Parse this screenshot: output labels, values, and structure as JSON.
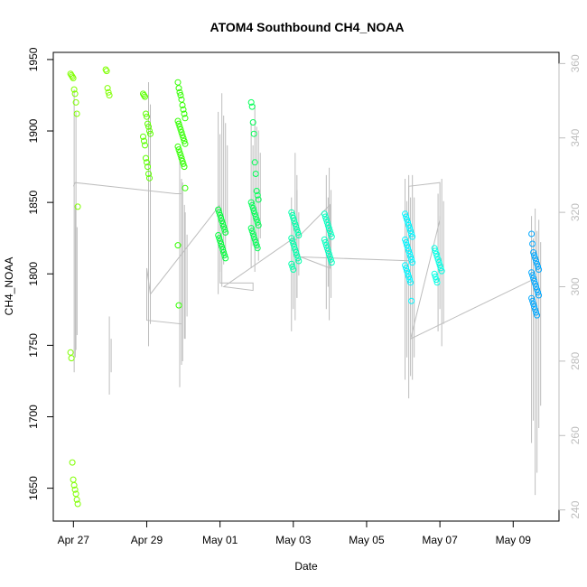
{
  "chart_data": {
    "type": "scatter",
    "title": "ATOM4 Southbound CH4_NOAA",
    "xlabel": "Date",
    "ylabel": "CH4_NOAA",
    "x_ticks": [
      {
        "day": 0,
        "label": "Apr 27"
      },
      {
        "day": 2,
        "label": "Apr 29"
      },
      {
        "day": 4,
        "label": "May 01"
      },
      {
        "day": 6,
        "label": "May 03"
      },
      {
        "day": 8,
        "label": "May 05"
      },
      {
        "day": 10,
        "label": "May 07"
      },
      {
        "day": 12,
        "label": "May 09"
      }
    ],
    "xlim": [
      -0.55,
      13.25
    ],
    "ylim": [
      1627,
      1955
    ],
    "yticks": [
      1650,
      1700,
      1750,
      1800,
      1850,
      1900,
      1950
    ],
    "y2lim": [
      237,
      363
    ],
    "y2ticks": [
      240,
      260,
      280,
      300,
      320,
      340,
      360
    ],
    "grid": false,
    "legend": "none",
    "clusters": [
      {
        "x": 0.02,
        "color": "#7fff00",
        "values": [
          1940,
          1939,
          1938,
          1937,
          1929,
          1926,
          1920,
          1912,
          1847,
          1745,
          1741,
          1668,
          1656,
          1652,
          1649,
          1646,
          1642,
          1639
        ]
      },
      {
        "x": 0.98,
        "color": "#7fff00",
        "values": [
          1943,
          1942,
          1930,
          1927,
          1925
        ]
      },
      {
        "x": 2.0,
        "color": "#5cff00",
        "values": [
          1926,
          1925,
          1924,
          1912,
          1910,
          1905,
          1903,
          1900,
          1898,
          1896,
          1893,
          1890,
          1881,
          1878,
          1875,
          1870,
          1867
        ]
      },
      {
        "x": 2.95,
        "color": "#32ff00",
        "values": [
          1934,
          1930,
          1927,
          1925,
          1922,
          1918,
          1915,
          1912,
          1909,
          1907,
          1905,
          1903,
          1901,
          1899,
          1897,
          1895,
          1893,
          1891,
          1889,
          1887,
          1885,
          1883,
          1881,
          1879,
          1877,
          1875,
          1860,
          1820,
          1778
        ]
      },
      {
        "x": 4.05,
        "color": "#00ff3a",
        "values": [
          1845,
          1843,
          1841,
          1839,
          1837,
          1835,
          1833,
          1831,
          1829,
          1827,
          1825,
          1823,
          1821,
          1819,
          1817,
          1815,
          1813,
          1811
        ]
      },
      {
        "x": 4.95,
        "color": "#00ff55",
        "values": [
          1920,
          1917,
          1906,
          1898,
          1878,
          1870,
          1858,
          1855,
          1852,
          1850,
          1848,
          1846,
          1844,
          1842,
          1840,
          1838,
          1836,
          1834,
          1832,
          1830,
          1828,
          1826,
          1824,
          1822,
          1820,
          1818
        ]
      },
      {
        "x": 6.05,
        "color": "#00ffaa",
        "values": [
          1843,
          1841,
          1839,
          1837,
          1835,
          1833,
          1831,
          1829,
          1827,
          1825,
          1823,
          1821,
          1819,
          1817,
          1815,
          1813,
          1811,
          1809,
          1807,
          1805,
          1803
        ]
      },
      {
        "x": 6.95,
        "color": "#00ffbf",
        "values": [
          1842,
          1840,
          1838,
          1836,
          1834,
          1832,
          1830,
          1828,
          1826,
          1824,
          1822,
          1820,
          1818,
          1816,
          1814,
          1812,
          1810,
          1808
        ]
      },
      {
        "x": 9.15,
        "color": "#00f5ff",
        "values": [
          1842,
          1840,
          1838,
          1836,
          1834,
          1832,
          1830,
          1828,
          1826,
          1824,
          1822,
          1820,
          1818,
          1816,
          1814,
          1812,
          1810,
          1808,
          1806,
          1804,
          1802,
          1800,
          1798,
          1796,
          1794,
          1781
        ]
      },
      {
        "x": 9.95,
        "color": "#00ffe4",
        "values": [
          1818,
          1816,
          1814,
          1812,
          1810,
          1808,
          1806,
          1804,
          1802,
          1800,
          1798,
          1796,
          1794
        ]
      },
      {
        "x": 12.6,
        "color": "#00a8ff",
        "values": [
          1828,
          1821,
          1815,
          1813,
          1811,
          1809,
          1807,
          1805,
          1803,
          1801,
          1799,
          1797,
          1795,
          1793,
          1791,
          1789,
          1787,
          1785,
          1783,
          1781,
          1779,
          1777,
          1775,
          1773,
          1771
        ]
      }
    ],
    "secondary_series": {
      "color": "#bdbdbd",
      "path": [
        [
          0.0,
          327
        ],
        [
          0.05,
          328
        ],
        [
          2.8,
          325
        ],
        [
          2.95,
          325
        ],
        [
          2.95,
          290
        ],
        [
          2.0,
          291
        ],
        [
          2.0,
          305
        ],
        [
          2.1,
          298
        ],
        [
          4.0,
          322
        ],
        [
          4.0,
          301
        ],
        [
          4.9,
          301
        ],
        [
          4.9,
          299
        ],
        [
          4.1,
          300
        ],
        [
          6.0,
          313
        ],
        [
          6.0,
          312
        ],
        [
          7.0,
          322
        ],
        [
          7.0,
          305
        ],
        [
          6.2,
          308
        ],
        [
          9.15,
          307
        ],
        [
          9.15,
          327
        ],
        [
          10.0,
          328
        ],
        [
          10.0,
          318
        ],
        [
          9.2,
          286
        ],
        [
          12.55,
          302
        ]
      ],
      "spikes": [
        {
          "x": 0.02,
          "low": 277,
          "high": 353
        },
        {
          "x": 0.05,
          "low": 281,
          "high": 322
        },
        {
          "x": 0.98,
          "low": 271,
          "high": 292
        },
        {
          "x": 2.05,
          "low": 284,
          "high": 355
        },
        {
          "x": 2.9,
          "low": 273,
          "high": 335
        },
        {
          "x": 2.98,
          "low": 280,
          "high": 328
        },
        {
          "x": 3.05,
          "low": 286,
          "high": 320
        },
        {
          "x": 3.95,
          "low": 298,
          "high": 347
        },
        {
          "x": 4.05,
          "low": 300,
          "high": 352
        },
        {
          "x": 4.15,
          "low": 308,
          "high": 344
        },
        {
          "x": 4.85,
          "low": 305,
          "high": 344
        },
        {
          "x": 4.95,
          "low": 304,
          "high": 349
        },
        {
          "x": 5.05,
          "low": 307,
          "high": 342
        },
        {
          "x": 5.95,
          "low": 288,
          "high": 324
        },
        {
          "x": 6.05,
          "low": 291,
          "high": 336
        },
        {
          "x": 6.1,
          "low": 297,
          "high": 326
        },
        {
          "x": 6.9,
          "low": 294,
          "high": 330
        },
        {
          "x": 6.98,
          "low": 291,
          "high": 332
        },
        {
          "x": 9.05,
          "low": 275,
          "high": 329
        },
        {
          "x": 9.15,
          "low": 270,
          "high": 330
        },
        {
          "x": 9.25,
          "low": 275,
          "high": 330
        },
        {
          "x": 9.95,
          "low": 288,
          "high": 325
        },
        {
          "x": 10.05,
          "low": 284,
          "high": 329
        },
        {
          "x": 12.5,
          "low": 258,
          "high": 319
        },
        {
          "x": 12.6,
          "low": 244,
          "high": 321
        },
        {
          "x": 12.7,
          "low": 262,
          "high": 318
        }
      ]
    }
  }
}
